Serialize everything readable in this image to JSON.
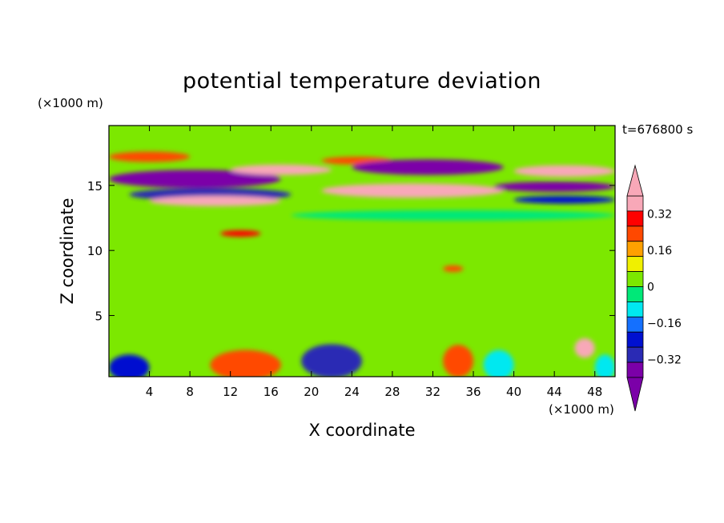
{
  "chart_data": {
    "type": "heatmap",
    "title": "potential temperature deviation",
    "time_label": "t=676800 s",
    "x_unit": "(×1000 m)",
    "y_unit": "(×1000 m)",
    "xlabel": "X coordinate",
    "ylabel": "Z coordinate",
    "xlim": [
      0,
      50
    ],
    "ylim": [
      0.3,
      19.6
    ],
    "x_ticks": [
      4,
      8,
      12,
      16,
      20,
      24,
      28,
      32,
      36,
      40,
      44,
      48
    ],
    "y_ticks": [
      5,
      10,
      15
    ],
    "colorbar": {
      "levels": [
        -0.44,
        -0.4,
        -0.32,
        -0.24,
        -0.16,
        -0.08,
        0,
        0.08,
        0.16,
        0.24,
        0.32,
        0.4,
        0.44
      ],
      "tick_labels": [
        {
          "label": "0.32",
          "value": 0.32
        },
        {
          "label": "0.16",
          "value": 0.16
        },
        {
          "label": "0",
          "value": 0
        },
        {
          "label": "−0.16",
          "value": -0.16
        },
        {
          "label": "−0.32",
          "value": -0.32
        }
      ],
      "colors": [
        "#7b00a8",
        "#2a2ab4",
        "#0010d0",
        "#1470ff",
        "#00e8f0",
        "#00e878",
        "#7ce800",
        "#f0f000",
        "#ffa000",
        "#ff4800",
        "#ff0000",
        "#f8a8b8"
      ],
      "extend_low_color": "#7b00a8",
      "extend_high_color": "#f8a8b8"
    },
    "features": [
      {
        "x": 0,
        "z": 15.5,
        "w": 17,
        "h": 1.4,
        "level": -0.44
      },
      {
        "x": 2,
        "z": 14.3,
        "w": 16,
        "h": 1.0,
        "level": -0.4
      },
      {
        "x": 4,
        "z": 13.8,
        "w": 13,
        "h": 0.8,
        "level": 0.44
      },
      {
        "x": 0,
        "z": 17.2,
        "w": 8,
        "h": 0.8,
        "level": 0.24
      },
      {
        "x": 12,
        "z": 16.2,
        "w": 10,
        "h": 0.8,
        "level": 0.44
      },
      {
        "x": 21,
        "z": 16.9,
        "w": 7,
        "h": 0.6,
        "level": 0.24
      },
      {
        "x": 24,
        "z": 16.4,
        "w": 15,
        "h": 1.2,
        "level": -0.44
      },
      {
        "x": 21,
        "z": 14.6,
        "w": 18,
        "h": 1.1,
        "level": 0.44
      },
      {
        "x": 40,
        "z": 16.1,
        "w": 10,
        "h": 0.9,
        "level": 0.44
      },
      {
        "x": 38,
        "z": 14.9,
        "w": 12,
        "h": 0.8,
        "level": -0.44
      },
      {
        "x": 40,
        "z": 13.9,
        "w": 10,
        "h": 0.6,
        "level": -0.32
      },
      {
        "x": 18,
        "z": 12.7,
        "w": 32,
        "h": 0.8,
        "level": -0.08
      },
      {
        "x": 11,
        "z": 11.3,
        "w": 4,
        "h": 0.5,
        "level": 0.32
      },
      {
        "x": 33,
        "z": 8.6,
        "w": 2,
        "h": 0.5,
        "level": 0.24
      },
      {
        "x": 0,
        "z": 1.0,
        "w": 4,
        "h": 2.0,
        "level": -0.32
      },
      {
        "x": 10,
        "z": 1.2,
        "w": 7,
        "h": 2.3,
        "level": 0.24
      },
      {
        "x": 19,
        "z": 1.5,
        "w": 6,
        "h": 2.6,
        "level": -0.4
      },
      {
        "x": 33,
        "z": 1.5,
        "w": 3,
        "h": 2.5,
        "level": 0.24
      },
      {
        "x": 37,
        "z": 1.2,
        "w": 3,
        "h": 2.3,
        "level": -0.16
      },
      {
        "x": 46,
        "z": 2.5,
        "w": 2,
        "h": 1.5,
        "level": 0.44
      },
      {
        "x": 48,
        "z": 1.0,
        "w": 2,
        "h": 2.0,
        "level": -0.16
      }
    ]
  }
}
